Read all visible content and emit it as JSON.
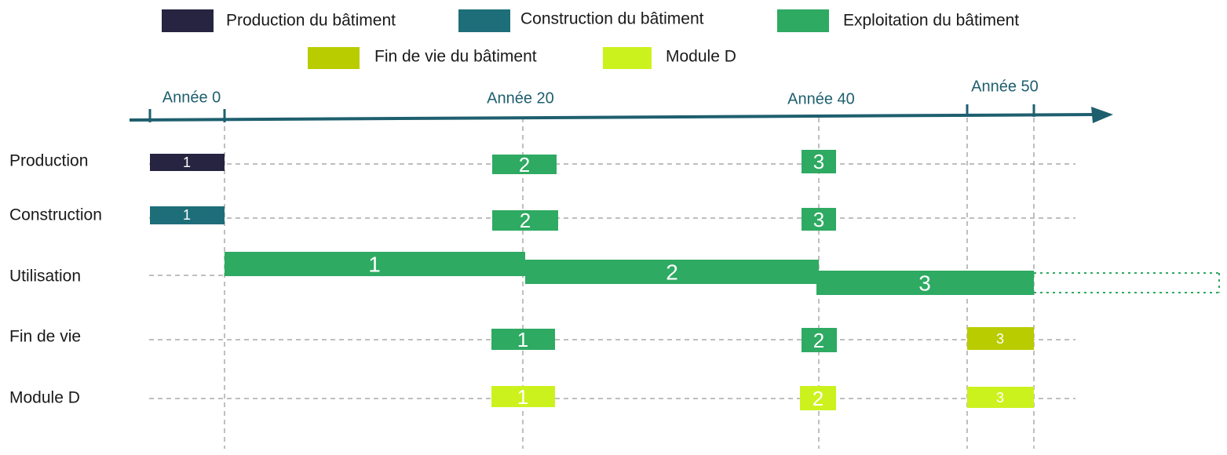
{
  "colors": {
    "production": "#262440",
    "construction": "#1e6e7a",
    "exploitation": "#2eaa62",
    "fin_de_vie": "#b8cc00",
    "module_d": "#ccf21e",
    "axis": "#1e5f6e",
    "gridline": "#aaaaaa"
  },
  "legend": [
    {
      "label": "Production du bâtiment",
      "color_key": "production"
    },
    {
      "label": "Construction du bâtiment",
      "color_key": "construction"
    },
    {
      "label": "Exploitation du bâtiment",
      "color_key": "exploitation"
    },
    {
      "label": "Fin de vie du bâtiment",
      "color_key": "fin_de_vie"
    },
    {
      "label": "Module D",
      "color_key": "module_d"
    }
  ],
  "axis": {
    "ticks": [
      {
        "year": 0,
        "label": "Année 0"
      },
      {
        "year": 20,
        "label": "Année 20"
      },
      {
        "year": 40,
        "label": "Année 40"
      },
      {
        "year": 50,
        "label": "Année 50"
      }
    ]
  },
  "rows": [
    {
      "label": "Production",
      "color_key": "production"
    },
    {
      "label": "Construction",
      "color_key": "construction"
    },
    {
      "label": "Utilisation",
      "color_key": "exploitation"
    },
    {
      "label": "Fin de vie",
      "color_key": "fin_de_vie"
    },
    {
      "label": "Module D",
      "color_key": "module_d"
    }
  ],
  "bars": [
    {
      "row": 0,
      "label": "1",
      "at_year": 0,
      "color_key": "production"
    },
    {
      "row": 0,
      "label": "2",
      "at_year": 20,
      "color_key": "exploitation"
    },
    {
      "row": 0,
      "label": "3",
      "at_year": 40,
      "color_key": "exploitation"
    },
    {
      "row": 1,
      "label": "1",
      "at_year": 0,
      "color_key": "construction"
    },
    {
      "row": 1,
      "label": "2",
      "at_year": 20,
      "color_key": "exploitation"
    },
    {
      "row": 1,
      "label": "3",
      "at_year": 40,
      "color_key": "exploitation"
    },
    {
      "row": 2,
      "label": "1",
      "from_year": 0,
      "to_year": 20,
      "color_key": "exploitation"
    },
    {
      "row": 2,
      "label": "2",
      "from_year": 20,
      "to_year": 40,
      "color_key": "exploitation"
    },
    {
      "row": 2,
      "label": "3",
      "from_year": 40,
      "to_year": 50,
      "color_key": "exploitation"
    },
    {
      "row": 3,
      "label": "1",
      "at_year": 20,
      "color_key": "exploitation"
    },
    {
      "row": 3,
      "label": "2",
      "at_year": 40,
      "color_key": "exploitation"
    },
    {
      "row": 3,
      "label": "3",
      "at_year": 50,
      "color_key": "fin_de_vie"
    },
    {
      "row": 4,
      "label": "1",
      "at_year": 20,
      "color_key": "module_d"
    },
    {
      "row": 4,
      "label": "2",
      "at_year": 40,
      "color_key": "module_d"
    },
    {
      "row": 4,
      "label": "3",
      "at_year": 50,
      "color_key": "module_d"
    }
  ]
}
